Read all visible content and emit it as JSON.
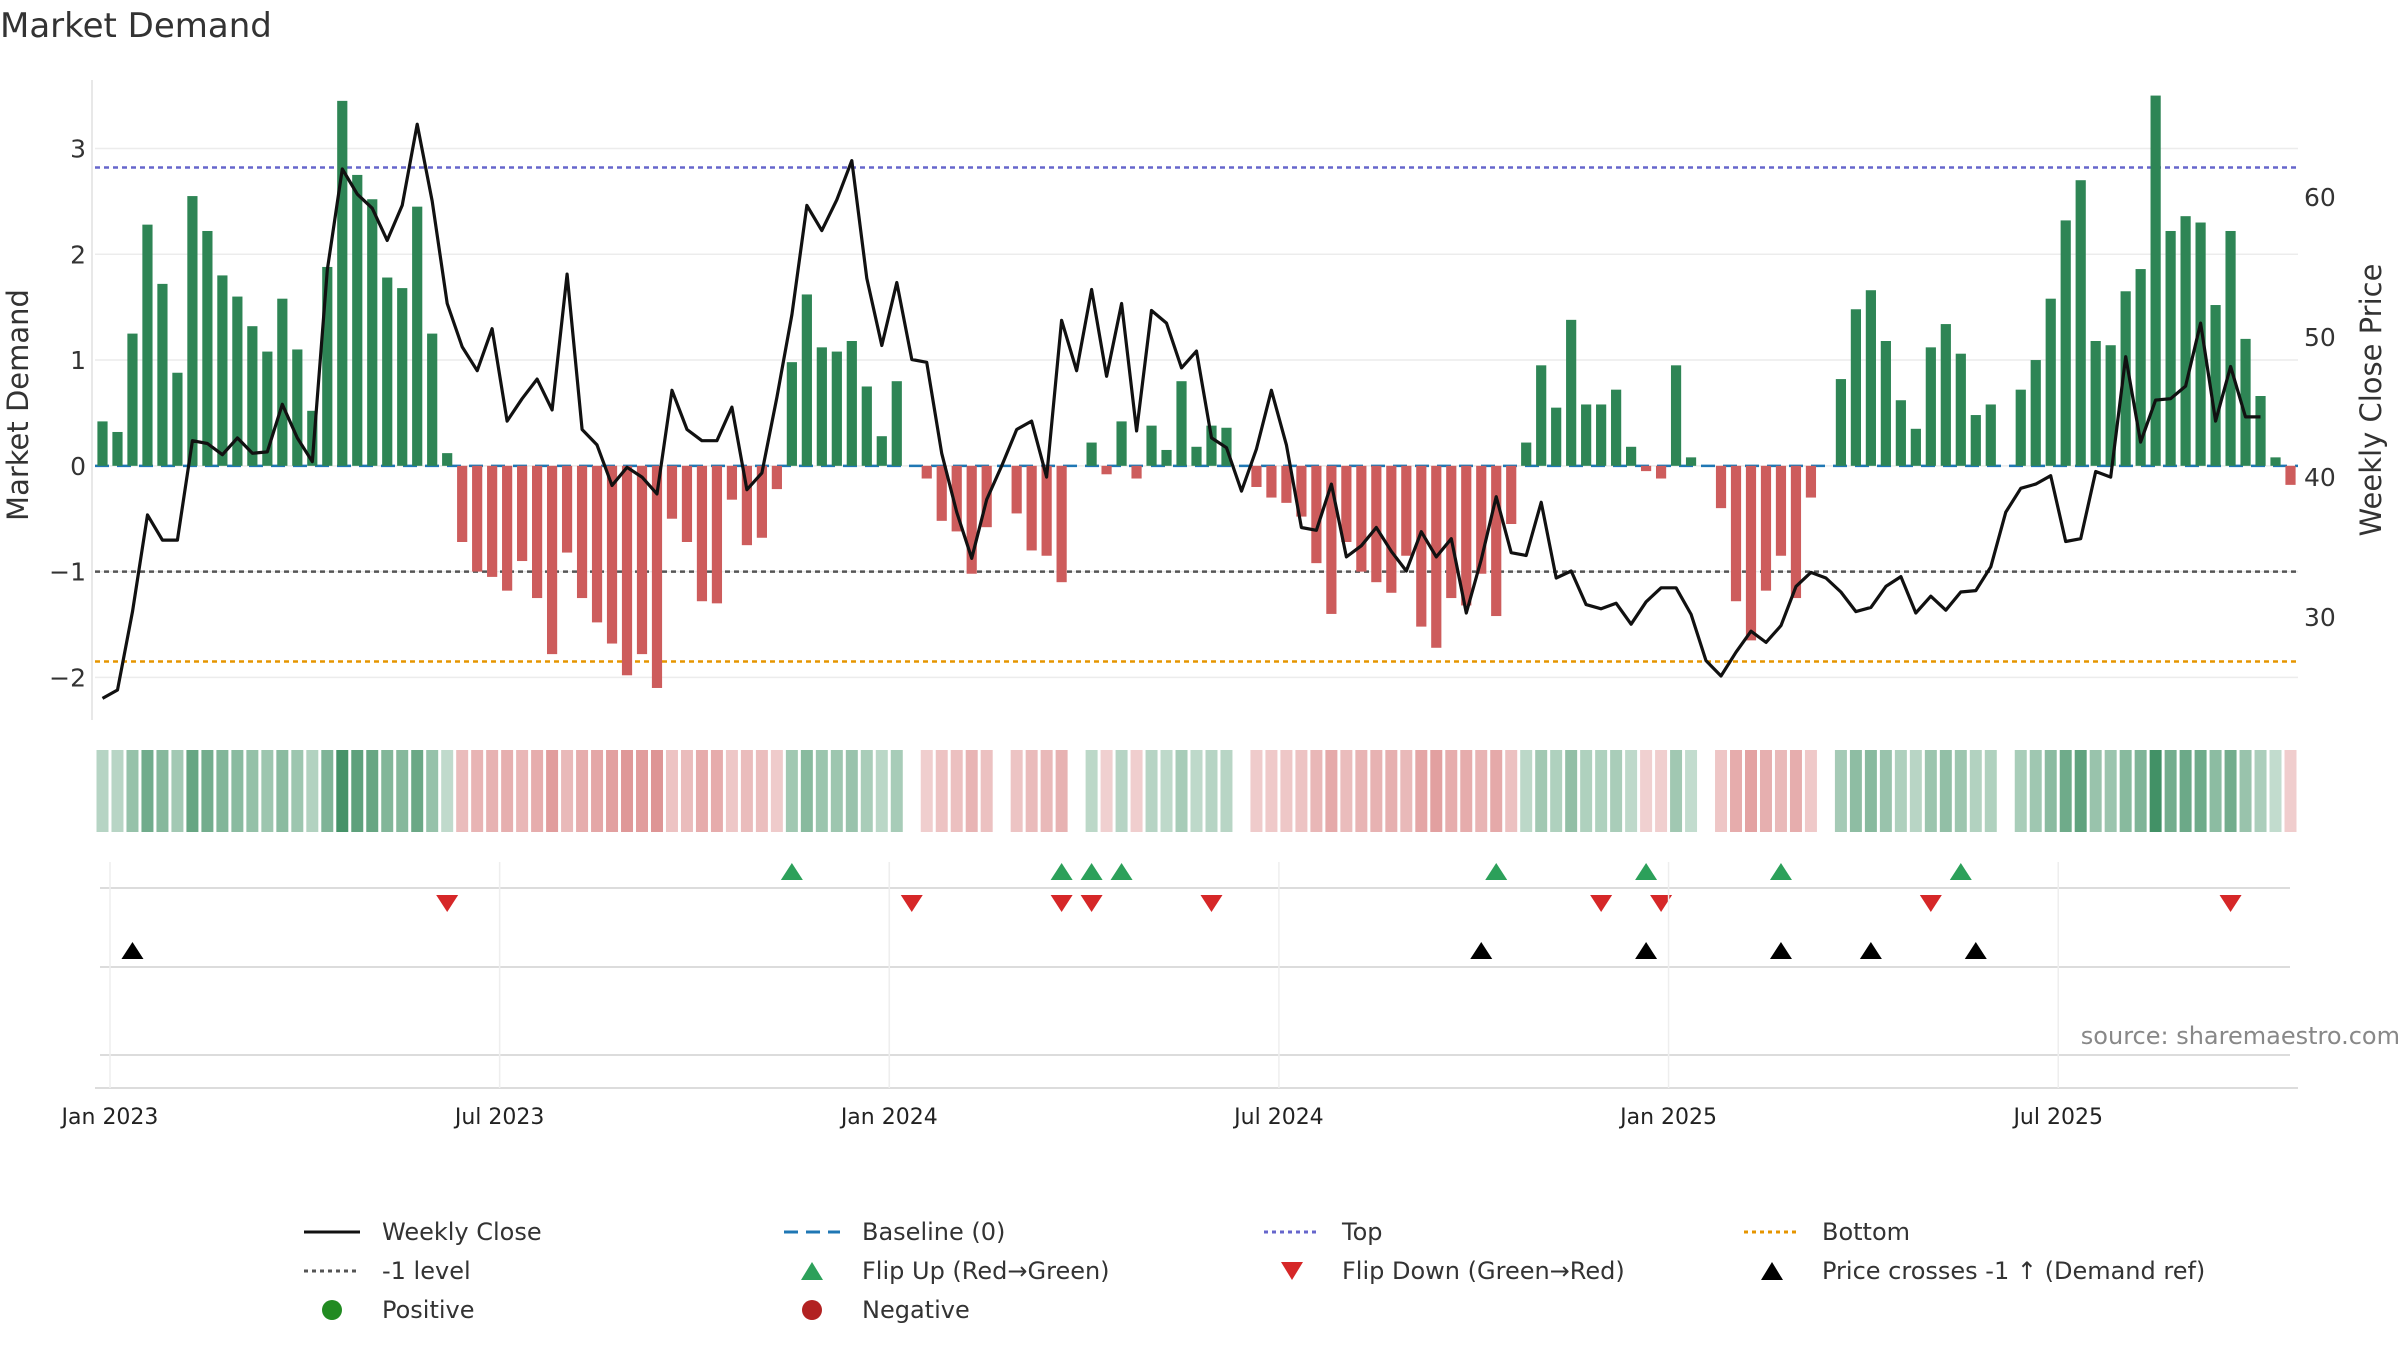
{
  "title": "Market Demand",
  "source": "source: sharemaestro.com",
  "colors": {
    "pos_bar": "#2e8555",
    "neg_bar": "#cd5c5c",
    "line": "#111111",
    "baseline": "#1f77b4",
    "top": "#6666cc",
    "minus1": "#555555",
    "bottom": "#e69500",
    "flip_up": "#2ca05a",
    "flip_down": "#d62728",
    "cross": "#000000",
    "positive_dot": "#228b22",
    "negative_dot": "#b22222"
  },
  "chart_data": {
    "type": "bar",
    "title": "Market Demand",
    "ylabel": "Market Demand",
    "y2label": "Weekly Close Price",
    "ylim": [
      -2.45,
      3.6
    ],
    "y2lim": [
      22.3,
      68.0
    ],
    "yticks": [
      "3",
      "2",
      "1",
      "0",
      "−1",
      "−2"
    ],
    "yticks_values": [
      3,
      2,
      1,
      0,
      -1,
      -2
    ],
    "y2ticks": [
      "60",
      "50",
      "40",
      "30"
    ],
    "y2ticks_values": [
      60,
      50,
      40,
      30
    ],
    "xticks": [
      "Jan 2023",
      "Jul 2023",
      "Jan 2024",
      "Jul 2024",
      "Jan 2025",
      "Jul 2025"
    ],
    "xticks_week": [
      1,
      27,
      53,
      79,
      105,
      131
    ],
    "reference_lines": {
      "baseline": 0,
      "top": 2.82,
      "minus1": -1,
      "bottom": -1.85
    },
    "demand": [
      0.42,
      0.32,
      1.25,
      2.28,
      1.72,
      0.88,
      2.55,
      2.22,
      1.8,
      1.6,
      1.32,
      1.08,
      1.58,
      1.1,
      0.52,
      1.88,
      3.45,
      2.75,
      2.52,
      1.78,
      1.68,
      2.45,
      1.25,
      0.12,
      -0.72,
      -1.0,
      -1.05,
      -1.18,
      -0.9,
      -1.25,
      -1.78,
      -0.82,
      -1.25,
      -1.48,
      -1.68,
      -1.98,
      -1.78,
      -2.1,
      -0.5,
      -0.72,
      -1.28,
      -1.3,
      -0.32,
      -0.75,
      -0.68,
      -0.22,
      0.98,
      1.62,
      1.12,
      1.08,
      1.18,
      0.75,
      0.28,
      0.8,
      0,
      -0.12,
      -0.52,
      -0.62,
      -1.02,
      -0.58,
      0,
      -0.45,
      -0.8,
      -0.85,
      -1.1,
      0,
      0.22,
      -0.08,
      0.42,
      -0.12,
      0.38,
      0.15,
      0.8,
      0.18,
      0.38,
      0.36,
      0,
      -0.2,
      -0.3,
      -0.35,
      -0.48,
      -0.92,
      -1.4,
      -0.72,
      -1.0,
      -1.1,
      -1.2,
      -0.85,
      -1.52,
      -1.72,
      -1.25,
      -1.32,
      -1.02,
      -1.42,
      -0.55,
      0.22,
      0.95,
      0.55,
      1.38,
      0.58,
      0.58,
      0.72,
      0.18,
      -0.05,
      -0.12,
      0.95,
      0.08,
      0,
      -0.4,
      -1.28,
      -1.65,
      -1.18,
      -0.85,
      -1.25,
      -0.3,
      0,
      0.82,
      1.48,
      1.66,
      1.18,
      0.62,
      0.35,
      1.12,
      1.34,
      1.06,
      0.48,
      0.58,
      0,
      0.72,
      1.0,
      1.58,
      2.32,
      2.7,
      1.18,
      1.14,
      1.65,
      1.86,
      3.5,
      2.22,
      2.36,
      2.3,
      1.52,
      2.22,
      1.2,
      0.66,
      0.08,
      -0.18
    ],
    "weekly_close": [
      24.2,
      24.8,
      30.4,
      37.3,
      35.5,
      35.5,
      42.6,
      42.4,
      41.6,
      42.8,
      41.7,
      41.8,
      45.2,
      42.8,
      41.1,
      54.8,
      62.0,
      60.2,
      59.2,
      56.9,
      59.4,
      65.2,
      59.7,
      52.4,
      49.3,
      47.6,
      50.6,
      44.0,
      45.6,
      47.0,
      44.8,
      54.5,
      43.4,
      42.3,
      39.4,
      40.7,
      40.0,
      38.8,
      46.2,
      43.4,
      42.6,
      42.6,
      45.0,
      39.1,
      40.3,
      45.7,
      51.6,
      59.4,
      57.6,
      59.8,
      62.6,
      54.2,
      49.4,
      53.9,
      48.4,
      48.2,
      41.7,
      37.5,
      34.2,
      38.4,
      40.8,
      43.4,
      44.0,
      40.0,
      51.2,
      47.6,
      53.4,
      47.2,
      52.4,
      43.3,
      51.9,
      51.0,
      47.8,
      49.0,
      42.8,
      42.1,
      39.0,
      42.0,
      46.2,
      42.3,
      36.4,
      36.2,
      39.5,
      34.3,
      35.1,
      36.4,
      34.7,
      33.3,
      36.1,
      34.3,
      35.6,
      30.3,
      34.1,
      38.6,
      34.6,
      34.4,
      38.2,
      32.8,
      33.3,
      30.9,
      30.6,
      31.0,
      29.5,
      31.1,
      32.1,
      32.1,
      30.2,
      26.9,
      25.8,
      27.5,
      29.0,
      28.2,
      29.4,
      32.2,
      33.2,
      32.8,
      31.8,
      30.4,
      30.7,
      32.2,
      32.9,
      30.3,
      31.5,
      30.5,
      31.8,
      31.9,
      33.6,
      37.5,
      39.2,
      39.5,
      40.1,
      35.4,
      35.6,
      40.4,
      40.0,
      48.6,
      42.5,
      45.5,
      45.6,
      46.5,
      51.0,
      44.0,
      47.9,
      44.3,
      44.3
    ],
    "flip_up_weeks": [
      46,
      64,
      66,
      68,
      93,
      103,
      112,
      124
    ],
    "flip_down_weeks": [
      23,
      54,
      64,
      66,
      74,
      100,
      104,
      122,
      142
    ],
    "cross_weeks": [
      2,
      92,
      103,
      112,
      118,
      125
    ]
  },
  "legend": [
    {
      "key": "line",
      "label": "Weekly Close"
    },
    {
      "key": "baseline",
      "label": "Baseline (0)"
    },
    {
      "key": "top",
      "label": "Top"
    },
    {
      "key": "bottom",
      "label": "Bottom"
    },
    {
      "key": "minus1",
      "label": "-1 level"
    },
    {
      "key": "flip_up",
      "label": "Flip Up (Red→Green)"
    },
    {
      "key": "flip_down",
      "label": "Flip Down (Green→Red)"
    },
    {
      "key": "cross",
      "label": "Price crosses -1 ↑ (Demand ref)"
    },
    {
      "key": "positive",
      "label": "Positive"
    },
    {
      "key": "negative",
      "label": "Negative"
    }
  ]
}
